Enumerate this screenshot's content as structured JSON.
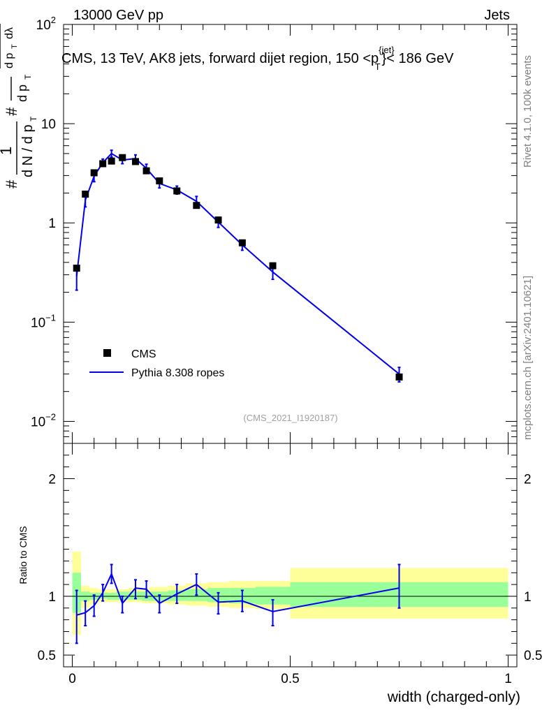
{
  "header": {
    "left": "13000 GeV pp",
    "right": "Jets"
  },
  "side_labels": {
    "rivet": "Rivet 4.1.0,  100k events",
    "mcplots": "mcplots.cern.ch [arXiv:2401.10621]"
  },
  "ylabel_parts": {
    "hash": "#",
    "one": "1",
    "dNdpT": "d N / d p",
    "T": "T",
    "numer": "d",
    "sup2": "2",
    "N": "N",
    "dpT": "d p",
    "dlambda": "dλ"
  },
  "chart_data": [
    {
      "type": "scatter",
      "title": "CMS, 13 TeV, AK8 jets, forward dijet region, 150 <p",
      "title_sup": "{jet}",
      "title_sub": "T",
      "title_end": "}< 186 GeV",
      "analysis_tag": "(CMS_2021_I1920187)",
      "yscale": "log",
      "ylim": [
        0.006,
        100
      ],
      "xlim": [
        -0.02,
        1.02
      ],
      "y_ticks": [
        {
          "value": 0.01,
          "base": "10",
          "exp": "−2"
        },
        {
          "value": 0.1,
          "base": "10",
          "exp": "−1"
        },
        {
          "value": 1,
          "label": "1"
        },
        {
          "value": 10,
          "label": "10"
        },
        {
          "value": 100,
          "base": "10",
          "exp": "2"
        }
      ],
      "legend": {
        "placement": "middle-left",
        "entries": [
          "CMS",
          "Pythia 8.308 ropes"
        ]
      },
      "series": [
        {
          "name": "CMS",
          "style": "markers",
          "color": "#000000",
          "x": [
            0.01,
            0.03,
            0.05,
            0.07,
            0.09,
            0.115,
            0.145,
            0.17,
            0.2,
            0.24,
            0.285,
            0.335,
            0.39,
            0.46,
            0.75
          ],
          "y": [
            0.35,
            1.95,
            3.2,
            3.95,
            4.2,
            4.55,
            4.15,
            3.35,
            2.65,
            2.1,
            1.5,
            1.07,
            0.63,
            0.37,
            0.028
          ]
        },
        {
          "name": "Pythia 8.308 ropes",
          "style": "line",
          "color": "#0000ee",
          "x": [
            0.01,
            0.03,
            0.05,
            0.07,
            0.09,
            0.115,
            0.145,
            0.17,
            0.2,
            0.24,
            0.285,
            0.335,
            0.39,
            0.46,
            0.75
          ],
          "y": [
            0.29,
            1.7,
            2.95,
            4.05,
            5.0,
            4.3,
            4.45,
            3.55,
            2.5,
            2.15,
            1.65,
            1.02,
            0.6,
            0.32,
            0.03
          ],
          "err_low": [
            0.21,
            1.45,
            2.6,
            3.7,
            4.6,
            3.95,
            4.05,
            3.2,
            2.25,
            1.95,
            1.45,
            0.9,
            0.53,
            0.27,
            0.025
          ],
          "err_high": [
            0.37,
            1.95,
            3.3,
            4.4,
            5.4,
            4.65,
            4.85,
            3.9,
            2.75,
            2.35,
            1.85,
            1.14,
            0.67,
            0.37,
            0.035
          ]
        }
      ]
    },
    {
      "type": "line",
      "ylabel": "Ratio to CMS",
      "xlabel": "width (charged-only)",
      "ylim": [
        0.4,
        2.3
      ],
      "xlim": [
        -0.02,
        1.02
      ],
      "y_ticks": [
        0.5,
        1,
        2
      ],
      "x_ticks": [
        0,
        0.5,
        1
      ],
      "x_tick_labels": [
        "0",
        "0.5",
        "1"
      ],
      "y_tick_labels": [
        "0.5",
        "1",
        "2"
      ],
      "bands": {
        "bin_edges": [
          0,
          0.02,
          0.04,
          0.06,
          0.08,
          0.1,
          0.13,
          0.16,
          0.18,
          0.22,
          0.26,
          0.31,
          0.36,
          0.42,
          0.5,
          1.0
        ],
        "yellow_low": [
          0.67,
          0.9,
          0.93,
          0.95,
          0.95,
          0.95,
          0.95,
          0.94,
          0.94,
          0.93,
          0.92,
          0.91,
          0.9,
          0.89,
          0.81
        ],
        "yellow_high": [
          1.38,
          1.09,
          1.07,
          1.06,
          1.06,
          1.06,
          1.07,
          1.07,
          1.08,
          1.09,
          1.11,
          1.12,
          1.13,
          1.13,
          1.24
        ],
        "green_low": [
          0.86,
          0.96,
          0.97,
          0.98,
          0.97,
          0.97,
          0.97,
          0.96,
          0.96,
          0.96,
          0.96,
          0.95,
          0.94,
          0.93,
          0.91
        ],
        "green_high": [
          1.2,
          1.04,
          1.03,
          1.03,
          1.03,
          1.04,
          1.04,
          1.04,
          1.04,
          1.05,
          1.06,
          1.07,
          1.07,
          1.08,
          1.12
        ]
      },
      "series": [
        {
          "name": "Pythia 8.308 ropes / CMS",
          "color": "#0000ee",
          "x": [
            0.01,
            0.03,
            0.05,
            0.07,
            0.09,
            0.115,
            0.145,
            0.17,
            0.2,
            0.24,
            0.285,
            0.335,
            0.39,
            0.46,
            0.75
          ],
          "y": [
            0.84,
            0.86,
            0.92,
            1.03,
            1.19,
            0.94,
            1.07,
            1.06,
            0.94,
            1.02,
            1.1,
            0.95,
            0.96,
            0.87,
            1.07
          ],
          "err_low": [
            0.6,
            0.75,
            0.83,
            0.96,
            1.11,
            0.86,
            0.98,
            0.99,
            0.86,
            0.94,
            1.01,
            0.85,
            0.87,
            0.75,
            0.9
          ],
          "err_high": [
            1.05,
            0.96,
            1.01,
            1.1,
            1.27,
            1.0,
            1.14,
            1.13,
            1.01,
            1.1,
            1.19,
            1.03,
            1.05,
            0.97,
            1.27
          ]
        }
      ]
    }
  ]
}
